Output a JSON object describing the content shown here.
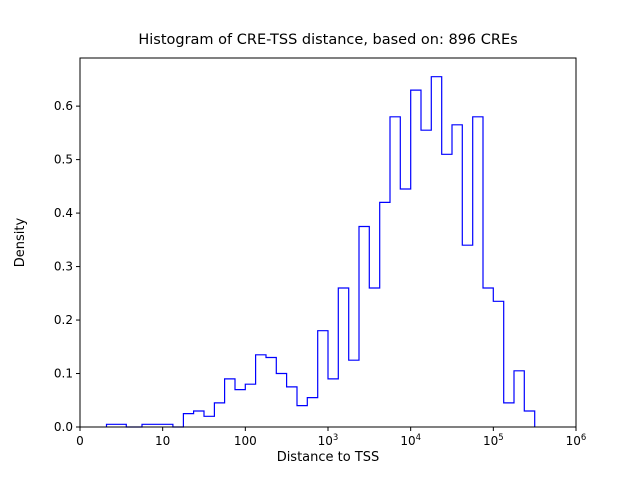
{
  "chart_data": {
    "type": "bar",
    "subtype": "step-histogram",
    "title": "Histogram of CRE-TSS distance, based on: 896 CREs",
    "xlabel": "Distance to TSS",
    "ylabel": "Density",
    "n_cres": 896,
    "x_scale": "symlog",
    "x_linthresh": 10,
    "xlim": [
      0,
      1000000
    ],
    "ylim": [
      0,
      0.69
    ],
    "grid": false,
    "legend": "none",
    "line_color": "#0000ff",
    "bin_edges": [
      3.2,
      4.2,
      5.6,
      7.5,
      10,
      13.3,
      17.8,
      23.7,
      31.6,
      42.2,
      56.2,
      75,
      100,
      133,
      178,
      237,
      316,
      422,
      562,
      750,
      1000,
      1334,
      1778,
      2371,
      3162,
      4217,
      5623,
      7499,
      10000,
      13335,
      17783,
      23714,
      31623,
      42170,
      56234,
      74989,
      100000,
      133352,
      177828,
      237137,
      316228
    ],
    "densities": [
      0.005,
      0.005,
      0,
      0.005,
      0.005,
      0,
      0.025,
      0.03,
      0.02,
      0.045,
      0.09,
      0.07,
      0.08,
      0.135,
      0.13,
      0.1,
      0.075,
      0.04,
      0.055,
      0.18,
      0.09,
      0.26,
      0.125,
      0.375,
      0.26,
      0.42,
      0.58,
      0.445,
      0.63,
      0.555,
      0.655,
      0.51,
      0.565,
      0.34,
      0.58,
      0.26,
      0.235,
      0.045,
      0.105,
      0.03
    ],
    "x_ticks": [
      {
        "value": 0,
        "label": "0"
      },
      {
        "value": 10,
        "label": "10"
      },
      {
        "value": 100,
        "label": "100"
      },
      {
        "value": 1000,
        "base": "10",
        "exp": "3"
      },
      {
        "value": 10000,
        "base": "10",
        "exp": "4"
      },
      {
        "value": 100000,
        "base": "10",
        "exp": "5"
      },
      {
        "value": 1000000,
        "base": "10",
        "exp": "6"
      }
    ],
    "y_ticks": [
      {
        "value": 0.0,
        "label": "0.0"
      },
      {
        "value": 0.1,
        "label": "0.1"
      },
      {
        "value": 0.2,
        "label": "0.2"
      },
      {
        "value": 0.3,
        "label": "0.3"
      },
      {
        "value": 0.4,
        "label": "0.4"
      },
      {
        "value": 0.5,
        "label": "0.5"
      },
      {
        "value": 0.6,
        "label": "0.6"
      }
    ]
  }
}
